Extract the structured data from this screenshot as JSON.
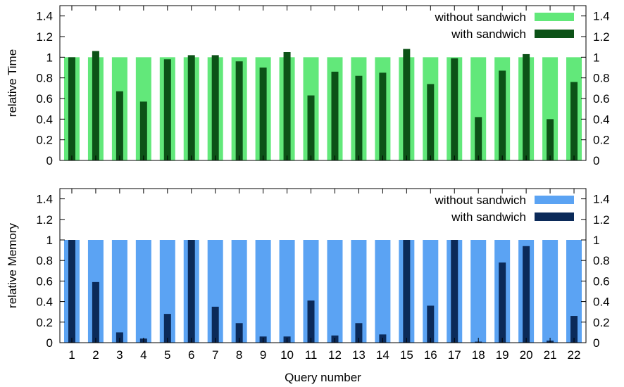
{
  "chart_data": [
    {
      "type": "bar",
      "ylabel": "relative Time",
      "xlabel": "",
      "ylim": [
        0,
        1.5
      ],
      "yticks": [
        0,
        0.2,
        0.4,
        0.6,
        0.8,
        1,
        1.2,
        1.4
      ],
      "categories": [
        "1",
        "2",
        "3",
        "4",
        "5",
        "6",
        "7",
        "8",
        "9",
        "10",
        "11",
        "12",
        "13",
        "14",
        "15",
        "16",
        "17",
        "18",
        "19",
        "20",
        "21",
        "22"
      ],
      "legend_position": "top-right",
      "grid": false,
      "series": [
        {
          "name": "without sandwich",
          "color": "#62e87a",
          "values": [
            1,
            1,
            1,
            1,
            1,
            1,
            1,
            1,
            1,
            1,
            1,
            1,
            1,
            1,
            1,
            1,
            1,
            1,
            1,
            1,
            1,
            1
          ]
        },
        {
          "name": "with sandwich",
          "color": "#0c5217",
          "values": [
            1.0,
            1.06,
            0.67,
            0.57,
            0.98,
            1.02,
            1.02,
            0.96,
            0.9,
            1.05,
            0.63,
            0.86,
            0.82,
            0.85,
            1.08,
            0.74,
            0.99,
            0.42,
            0.87,
            1.03,
            0.4,
            0.76
          ]
        }
      ]
    },
    {
      "type": "bar",
      "ylabel": "relative Memory",
      "xlabel": "Query number",
      "ylim": [
        0,
        1.5
      ],
      "yticks": [
        0,
        0.2,
        0.4,
        0.6,
        0.8,
        1,
        1.2,
        1.4
      ],
      "categories": [
        "1",
        "2",
        "3",
        "4",
        "5",
        "6",
        "7",
        "8",
        "9",
        "10",
        "11",
        "12",
        "13",
        "14",
        "15",
        "16",
        "17",
        "18",
        "19",
        "20",
        "21",
        "22"
      ],
      "legend_position": "top-right",
      "grid": false,
      "series": [
        {
          "name": "without sandwich",
          "color": "#5ba3f3",
          "values": [
            1,
            1,
            1,
            1,
            1,
            1,
            1,
            1,
            1,
            1,
            1,
            1,
            1,
            1,
            1,
            1,
            1,
            1,
            1,
            1,
            1,
            1
          ]
        },
        {
          "name": "with sandwich",
          "color": "#0b2a59",
          "values": [
            1.0,
            0.59,
            0.1,
            0.04,
            0.28,
            1.0,
            0.35,
            0.19,
            0.06,
            0.06,
            0.41,
            0.07,
            0.19,
            0.08,
            1.0,
            0.36,
            1.0,
            0.01,
            0.78,
            0.94,
            0.02,
            0.26
          ]
        }
      ]
    }
  ]
}
